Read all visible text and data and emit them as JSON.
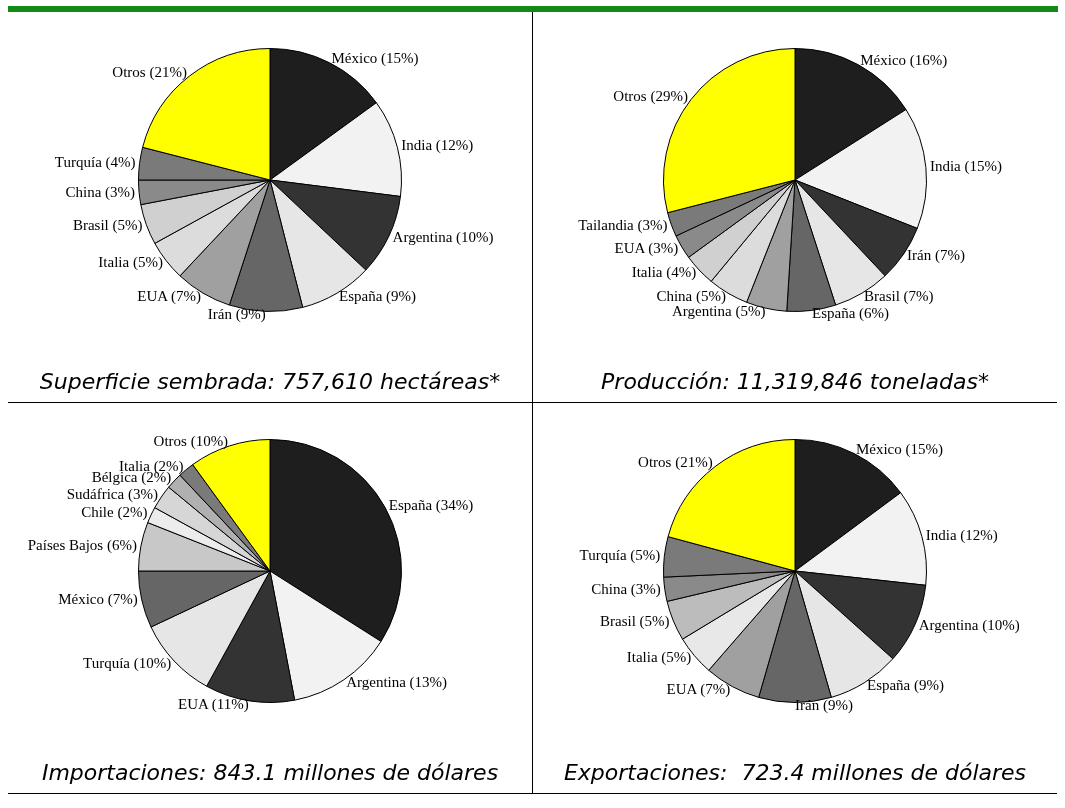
{
  "chart_data": [
    {
      "type": "pie",
      "title": "Superficie sembrada: 757,610 hectáreas*",
      "categories": [
        "México",
        "India",
        "Argentina",
        "España",
        "Irán",
        "EUA",
        "Italia",
        "Brasil",
        "China",
        "Turquía",
        "Otros"
      ],
      "values": [
        15,
        12,
        10,
        9,
        9,
        7,
        5,
        5,
        3,
        4,
        21
      ],
      "value_labels": [
        "(15%)",
        "(12%)",
        "(10%)",
        "(9%)",
        "(9%)",
        "(7%)",
        "(5%)",
        "(5%)",
        "(3%)",
        "(4%)",
        "(21%)"
      ],
      "colors": [
        "#1e1e1e",
        "#f2f2f2",
        "#333333",
        "#e6e6e6",
        "#666666",
        "#a0a0a0",
        "#dcdcdc",
        "#d0d0d0",
        "#8a8a8a",
        "#7a7a7a",
        "#ffff00"
      ],
      "legend": false
    },
    {
      "type": "pie",
      "title": "Producción: 11,319,846 toneladas*",
      "categories": [
        "México",
        "India",
        "Irán",
        "Brasil",
        "España",
        "Argentina",
        "China",
        "Italia",
        "EUA",
        "Tailandia",
        "Otros"
      ],
      "values": [
        16,
        15,
        7,
        7,
        6,
        5,
        5,
        4,
        3,
        3,
        29
      ],
      "value_labels": [
        "(16%)",
        "(15%)",
        "(7%)",
        "(7%)",
        "(6%)",
        "(5%)",
        "(5%)",
        "(4%)",
        "(3%)",
        "(3%)",
        "(29%)"
      ],
      "colors": [
        "#1e1e1e",
        "#f2f2f2",
        "#333333",
        "#e6e6e6",
        "#666666",
        "#a0a0a0",
        "#dcdcdc",
        "#d0d0d0",
        "#8a8a8a",
        "#7a7a7a",
        "#ffff00"
      ],
      "legend": false
    },
    {
      "type": "pie",
      "title": "Importaciones: 843.1 millones de dólares",
      "categories": [
        "España",
        "Argentina",
        "EUA",
        "Turquía",
        "México",
        "Países Bajos",
        "Chile",
        "Sudáfrica",
        "Bélgica",
        "Italia",
        "Otros"
      ],
      "values": [
        34,
        13,
        11,
        10,
        7,
        6,
        2,
        3,
        2,
        2,
        10
      ],
      "value_labels": [
        "(34%)",
        "(13%)",
        "(11%)",
        "(10%)",
        "(7%)",
        "(6%)",
        "(2%)",
        "(3%)",
        "(2%)",
        "(2%)",
        "(10%)"
      ],
      "colors": [
        "#1e1e1e",
        "#f2f2f2",
        "#333333",
        "#e6e6e6",
        "#666666",
        "#c8c8c8",
        "#ececec",
        "#d6d6d6",
        "#b0b0b0",
        "#7a7a7a",
        "#ffff00"
      ],
      "legend": false
    },
    {
      "type": "pie",
      "title": "Exportaciones:  723.4 millones de dólares",
      "categories": [
        "México",
        "India",
        "Argentina",
        "España",
        "Irán",
        "EUA",
        "Italia",
        "Brasil",
        "China",
        "Turquía",
        "Otros"
      ],
      "values": [
        15,
        12,
        10,
        9,
        9,
        7,
        5,
        5,
        3,
        5,
        21
      ],
      "value_labels": [
        "(15%)",
        "(12%)",
        "(10%)",
        "(9%)",
        "(9%)",
        "(7%)",
        "(5%)",
        "(5%)",
        "(3%)",
        "(5%)",
        "(21%)"
      ],
      "colors": [
        "#1e1e1e",
        "#f2f2f2",
        "#333333",
        "#e6e6e6",
        "#666666",
        "#a0a0a0",
        "#e8e8e8",
        "#bcbcbc",
        "#8a8a8a",
        "#7a7a7a",
        "#ffff00"
      ],
      "legend": false
    }
  ]
}
